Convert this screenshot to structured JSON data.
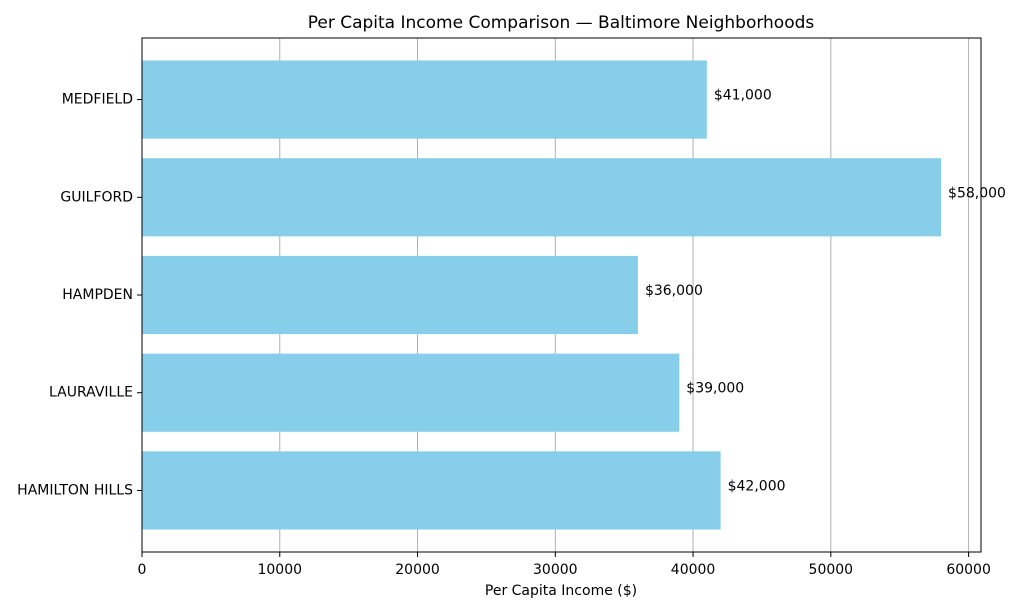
{
  "chart_data": {
    "type": "barh",
    "title": "Per Capita Income Comparison — Baltimore Neighborhoods",
    "xlabel": "Per Capita Income ($)",
    "categories": [
      "MEDFIELD",
      "GUILFORD",
      "HAMPDEN",
      "LAURAVILLE",
      "HAMILTON HILLS"
    ],
    "values": [
      41000,
      58000,
      36000,
      39000,
      42000
    ],
    "value_labels": [
      "$41,000",
      "$58,000",
      "$36,000",
      "$39,000",
      "$42,000"
    ],
    "color": "#87ceeb",
    "xlim": [
      0,
      60900
    ],
    "xticks": [
      0,
      10000,
      20000,
      30000,
      40000,
      50000,
      60000
    ],
    "grid": true
  }
}
